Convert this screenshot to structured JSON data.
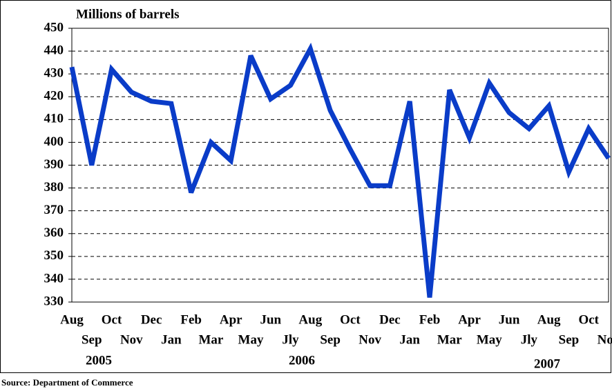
{
  "chart_data": {
    "type": "line",
    "title": "Millions of barrels",
    "source": "Source: Department of Commerce",
    "categories": [
      "Aug",
      "Sep",
      "Oct",
      "Nov",
      "Dec",
      "Jan",
      "Feb",
      "Mar",
      "Apr",
      "May",
      "Jun",
      "Jly",
      "Aug",
      "Sep",
      "Oct",
      "Nov",
      "Dec",
      "Jan",
      "Feb",
      "Mar",
      "Apr",
      "May",
      "Jun",
      "Jly",
      "Aug",
      "Sep",
      "Oct",
      "Nov"
    ],
    "year_labels": [
      "2005",
      "2006",
      "2007"
    ],
    "series": [
      {
        "name": "Millions of barrels",
        "color": "#0a3cc8",
        "values": [
          433,
          390,
          432,
          422,
          418,
          417,
          378,
          400,
          392,
          438,
          419,
          425,
          441,
          414,
          397,
          381,
          381,
          418,
          332,
          423,
          402,
          426,
          413,
          406,
          416,
          387,
          406,
          393
        ]
      }
    ],
    "ylim": [
      330,
      450
    ],
    "yticks": [
      330,
      340,
      350,
      360,
      370,
      380,
      390,
      400,
      410,
      420,
      430,
      440,
      450
    ],
    "grid": true
  }
}
